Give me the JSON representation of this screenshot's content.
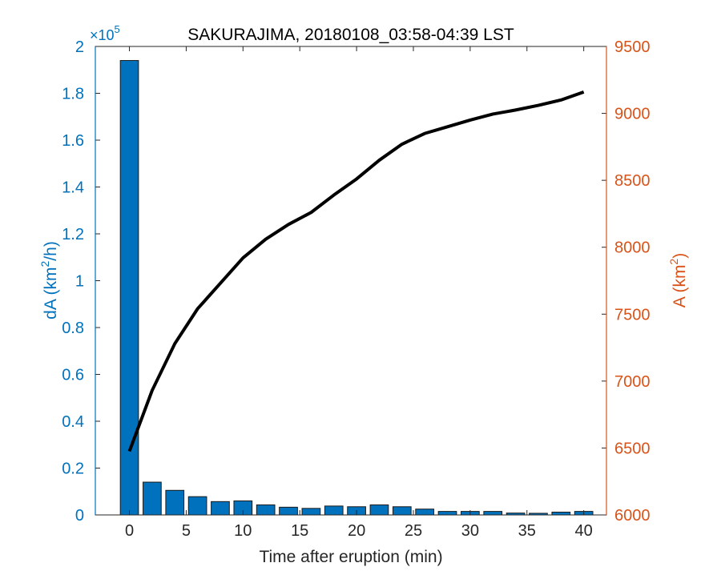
{
  "chart_data": {
    "type": "bar",
    "title": "SAKURAJIMA, 20180108_03:58-04:39 LST",
    "xlabel": "Time after eruption (min)",
    "xlim": [
      -3,
      42
    ],
    "xticks": [
      0,
      5,
      10,
      15,
      20,
      25,
      30,
      35,
      40
    ],
    "left_axis": {
      "label_main": "dA (km",
      "label_sup": "2",
      "label_tail": "/h)",
      "multiplier_base": "×10",
      "multiplier_exp": "5",
      "ylim": [
        0,
        2
      ],
      "ticks": [
        0,
        0.2,
        0.4,
        0.6,
        0.8,
        1,
        1.2,
        1.4,
        1.6,
        1.8,
        2
      ],
      "tick_labels": [
        "0",
        "0.2",
        "0.4",
        "0.6",
        "0.8",
        "1",
        "1.2",
        "1.4",
        "1.6",
        "1.8",
        "2"
      ],
      "color": "#0072bd"
    },
    "right_axis": {
      "label_main": "A (km",
      "label_sup": "2",
      "label_tail": ")",
      "ylim": [
        6000,
        9500
      ],
      "ticks": [
        6000,
        6500,
        7000,
        7500,
        8000,
        8500,
        9000,
        9500
      ],
      "tick_labels": [
        "6000",
        "6500",
        "7000",
        "7500",
        "8000",
        "8500",
        "9000",
        "9500"
      ],
      "color": "#d95319"
    },
    "series": [
      {
        "type": "bar",
        "axis": "left",
        "x": [
          0,
          2,
          4,
          6,
          8,
          10,
          12,
          14,
          16,
          18,
          20,
          22,
          24,
          26,
          28,
          30,
          32,
          34,
          36,
          38,
          40
        ],
        "values": [
          1.94,
          0.14,
          0.105,
          0.078,
          0.057,
          0.06,
          0.043,
          0.033,
          0.028,
          0.038,
          0.035,
          0.043,
          0.035,
          0.025,
          0.015,
          0.015,
          0.015,
          0.008,
          0.007,
          0.012,
          0.015
        ],
        "color": "#0072bd"
      },
      {
        "type": "line",
        "axis": "right",
        "x": [
          0,
          2,
          4,
          6,
          8,
          10,
          12,
          14,
          16,
          18,
          20,
          22,
          24,
          26,
          28,
          30,
          32,
          34,
          36,
          38,
          40
        ],
        "values": [
          6475,
          6930,
          7280,
          7540,
          7730,
          7920,
          8060,
          8170,
          8260,
          8390,
          8510,
          8650,
          8770,
          8850,
          8900,
          8950,
          8995,
          9025,
          9060,
          9100,
          9160
        ],
        "color": "#000000"
      }
    ]
  }
}
